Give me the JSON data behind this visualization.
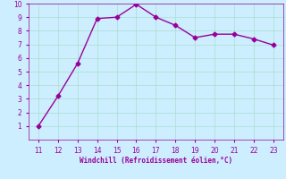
{
  "x": [
    11,
    12,
    13,
    14,
    15,
    16,
    17,
    18,
    19,
    20,
    21,
    22,
    23
  ],
  "y": [
    1.0,
    3.2,
    5.6,
    8.9,
    9.0,
    9.95,
    9.0,
    8.4,
    7.5,
    7.75,
    7.75,
    7.4,
    6.95
  ],
  "line_color": "#990099",
  "marker": "D",
  "marker_size": 2.5,
  "xlabel": "Windchill (Refroidissement éolien,°C)",
  "xlabel_color": "#990099",
  "ylim": [
    0,
    10
  ],
  "xlim": [
    10.5,
    23.5
  ],
  "yticks": [
    1,
    2,
    3,
    4,
    5,
    6,
    7,
    8,
    9,
    10
  ],
  "xticks": [
    11,
    12,
    13,
    14,
    15,
    16,
    17,
    18,
    19,
    20,
    21,
    22,
    23
  ],
  "bg_color": "#cceeff",
  "grid_color": "#aaddcc",
  "tick_label_color": "#990099",
  "linewidth": 1.0
}
